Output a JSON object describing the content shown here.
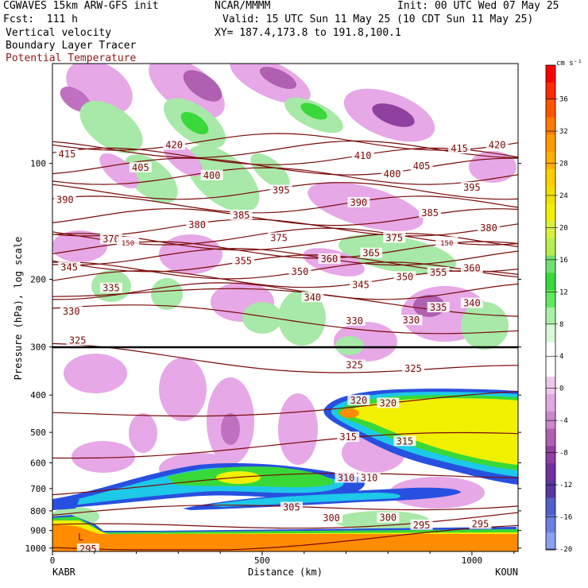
{
  "header": {
    "model": "CGWAVES 15km ARW-GFS init",
    "fcst": "Fcst:  111 h",
    "org": "NCAR/MMMM",
    "init": "Init: 00 UTC Wed 07 May 25",
    "valid": "Valid: 15 UTC Sun 11 May 25 (10 CDT Sun 11 May 25)",
    "xy": "XY= 187.4,173.8 to 191.8,100.1",
    "field1": "Vertical velocity",
    "field2": "Boundary Layer Tracer",
    "field3": "Potential Temperature"
  },
  "colors": {
    "theta": "#7a0a0a",
    "pink_light": "#e6a8e6",
    "purple": "#a040a0",
    "green_light": "#a8e8a8",
    "green": "#3ad83a",
    "yellow": "#f0f000",
    "orange": "#ff8c00",
    "blue": "#2850e0"
  },
  "chart_data": {
    "type": "contour",
    "xlabel": "Distance (km)",
    "ylabel": "Pressure (hPa), log scale",
    "x_ticks": [
      "0",
      "500",
      "1000"
    ],
    "x_tick_values": [
      0,
      500,
      1000
    ],
    "xlim": [
      0,
      1110
    ],
    "y_ticks": [
      "100",
      "200",
      "300",
      "400",
      "500",
      "600",
      "700",
      "800",
      "900",
      "1000"
    ],
    "y_tick_values": [
      100,
      200,
      300,
      400,
      500,
      600,
      700,
      800,
      900,
      1000
    ],
    "endpoints": {
      "left": "KABR",
      "right": "KOUN"
    },
    "colorbar": {
      "unit": "cm s⁻¹",
      "labels": [
        "36",
        "32",
        "28",
        "24",
        "20",
        "16",
        "12",
        "8",
        "4",
        "0",
        "-4",
        "-8",
        "-12",
        "-16",
        "-20"
      ],
      "colors": [
        "#ff0000",
        "#ff2a00",
        "#ff5500",
        "#ff7a00",
        "#ff9900",
        "#ffb000",
        "#ffd000",
        "#f0e000",
        "#f0f000",
        "#d8f040",
        "#b8ec50",
        "#70e070",
        "#38d838",
        "#60e860",
        "#a8f0a8",
        "#d8f8d8",
        "#ffffff",
        "#ffffff",
        "#ecc8ec",
        "#e0a8e0",
        "#cc88cc",
        "#b060b0",
        "#9040a0",
        "#7030a0",
        "#5838a0",
        "#5060c8",
        "#6a80e0",
        "#8aa0f0"
      ]
    },
    "theta_labels": [
      {
        "text": "415",
        "x": 35,
        "p": 95
      },
      {
        "text": "420",
        "x": 290,
        "p": 90
      },
      {
        "text": "405",
        "x": 210,
        "p": 103
      },
      {
        "text": "400",
        "x": 380,
        "p": 108
      },
      {
        "text": "410",
        "x": 740,
        "p": 96
      },
      {
        "text": "405",
        "x": 880,
        "p": 102
      },
      {
        "text": "400",
        "x": 810,
        "p": 107
      },
      {
        "text": "415",
        "x": 970,
        "p": 92
      },
      {
        "text": "420",
        "x": 1060,
        "p": 90
      },
      {
        "text": "390",
        "x": 30,
        "p": 125
      },
      {
        "text": "395",
        "x": 545,
        "p": 118
      },
      {
        "text": "395",
        "x": 1000,
        "p": 116
      },
      {
        "text": "390",
        "x": 730,
        "p": 127
      },
      {
        "text": "385",
        "x": 450,
        "p": 137
      },
      {
        "text": "385",
        "x": 900,
        "p": 135
      },
      {
        "text": "380",
        "x": 345,
        "p": 145
      },
      {
        "text": "380",
        "x": 1040,
        "p": 148
      },
      {
        "text": "375",
        "x": 540,
        "p": 157
      },
      {
        "text": "375",
        "x": 815,
        "p": 157
      },
      {
        "text": "370",
        "x": 140,
        "p": 158
      },
      {
        "text": "150",
        "x": 180,
        "p": 161
      },
      {
        "text": "150",
        "x": 940,
        "p": 161
      },
      {
        "text": "355",
        "x": 455,
        "p": 180
      },
      {
        "text": "360",
        "x": 660,
        "p": 178
      },
      {
        "text": "365",
        "x": 760,
        "p": 172
      },
      {
        "text": "360",
        "x": 1000,
        "p": 188
      },
      {
        "text": "345",
        "x": 40,
        "p": 187
      },
      {
        "text": "350",
        "x": 590,
        "p": 192
      },
      {
        "text": "350",
        "x": 840,
        "p": 198
      },
      {
        "text": "355",
        "x": 920,
        "p": 193
      },
      {
        "text": "335",
        "x": 140,
        "p": 212
      },
      {
        "text": "345",
        "x": 735,
        "p": 208
      },
      {
        "text": "340",
        "x": 620,
        "p": 224
      },
      {
        "text": "335",
        "x": 920,
        "p": 238
      },
      {
        "text": "340",
        "x": 1000,
        "p": 232
      },
      {
        "text": "330",
        "x": 45,
        "p": 244
      },
      {
        "text": "330",
        "x": 720,
        "p": 258
      },
      {
        "text": "330",
        "x": 855,
        "p": 257
      },
      {
        "text": "325",
        "x": 60,
        "p": 290
      },
      {
        "text": "325",
        "x": 720,
        "p": 336
      },
      {
        "text": "325",
        "x": 860,
        "p": 343
      },
      {
        "text": "320",
        "x": 730,
        "p": 415
      },
      {
        "text": "320",
        "x": 800,
        "p": 422
      },
      {
        "text": "315",
        "x": 705,
        "p": 517
      },
      {
        "text": "315",
        "x": 840,
        "p": 530
      },
      {
        "text": "310",
        "x": 700,
        "p": 660
      },
      {
        "text": "310",
        "x": 755,
        "p": 660
      },
      {
        "text": "305",
        "x": 570,
        "p": 787
      },
      {
        "text": "300",
        "x": 665,
        "p": 840
      },
      {
        "text": "300",
        "x": 800,
        "p": 838
      },
      {
        "text": "295",
        "x": 880,
        "p": 875
      },
      {
        "text": "295",
        "x": 1020,
        "p": 870
      },
      {
        "text": "295",
        "x": 85,
        "p": 1010
      }
    ]
  }
}
